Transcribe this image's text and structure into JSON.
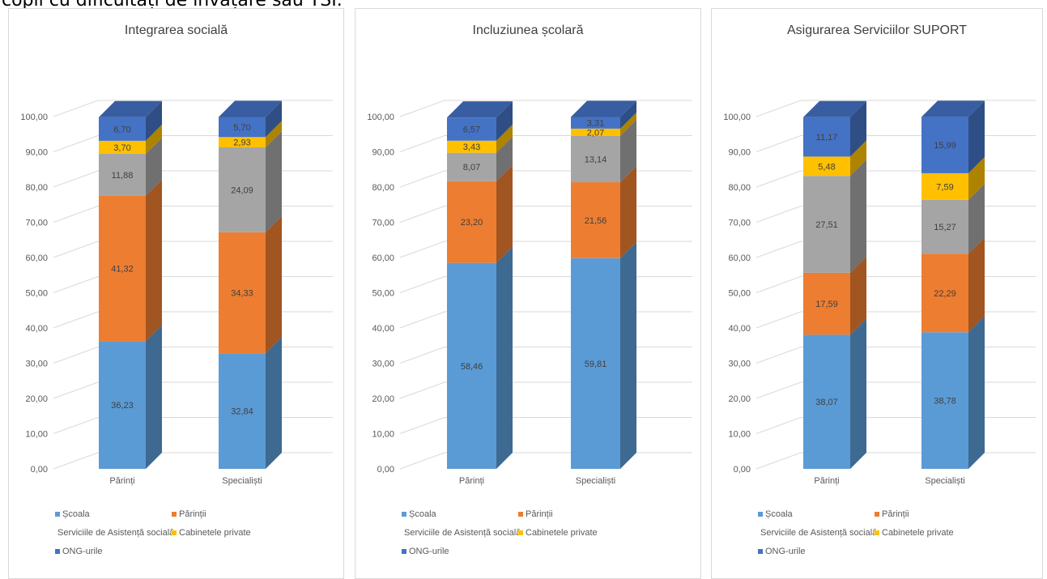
{
  "page": {
    "header_text": "copii cu dificultăți de învățare sau TSI."
  },
  "legend": {
    "items": [
      {
        "label": "Școala",
        "color": "#5b9bd5"
      },
      {
        "label": "Părinții",
        "color": "#ed7d31"
      },
      {
        "label": "Serviciile de Asistență socială",
        "color": "#a5a5a5"
      },
      {
        "label": "Cabinetele private",
        "color": "#ffc000"
      },
      {
        "label": "ONG-urile",
        "color": "#4472c4"
      }
    ]
  },
  "chart_data": [
    {
      "type": "bar",
      "stacked": true,
      "three_d": true,
      "title": "Integrarea socială",
      "categories": [
        "Părinți",
        "Specialiști"
      ],
      "y_ticks": [
        "0,00",
        "10,00",
        "20,00",
        "30,00",
        "40,00",
        "50,00",
        "60,00",
        "70,00",
        "80,00",
        "90,00",
        "100,00"
      ],
      "ylim": [
        0,
        100
      ],
      "grid": true,
      "legend_position": "bottom",
      "series": [
        {
          "name": "Școala",
          "values": [
            36.23,
            32.84
          ],
          "labels": [
            "36,23",
            "32,84"
          ]
        },
        {
          "name": "Părinții",
          "values": [
            41.32,
            34.33
          ],
          "labels": [
            "41,32",
            "34,33"
          ]
        },
        {
          "name": "Serviciile de Asistență socială",
          "values": [
            11.88,
            24.09
          ],
          "labels": [
            "11,88",
            "24,09"
          ]
        },
        {
          "name": "Cabinetele private",
          "values": [
            3.7,
            2.93
          ],
          "labels": [
            "3,70",
            "2,93"
          ]
        },
        {
          "name": "ONG-urile",
          "values": [
            6.7,
            5.7
          ],
          "labels": [
            "6,70",
            "5,70"
          ]
        }
      ]
    },
    {
      "type": "bar",
      "stacked": true,
      "three_d": true,
      "title": "Incluziunea școlară",
      "categories": [
        "Părinți",
        "Specialiști"
      ],
      "y_ticks": [
        "0,00",
        "10,00",
        "20,00",
        "30,00",
        "40,00",
        "50,00",
        "60,00",
        "70,00",
        "80,00",
        "90,00",
        "100,00"
      ],
      "ylim": [
        0,
        100
      ],
      "grid": true,
      "legend_position": "bottom",
      "series": [
        {
          "name": "Școala",
          "values": [
            58.46,
            59.81
          ],
          "labels": [
            "58,46",
            "59,81"
          ]
        },
        {
          "name": "Părinții",
          "values": [
            23.2,
            21.56
          ],
          "labels": [
            "23,20",
            "21,56"
          ]
        },
        {
          "name": "Serviciile de Asistență socială",
          "values": [
            8.07,
            13.14
          ],
          "labels": [
            "8,07",
            "13,14"
          ]
        },
        {
          "name": "Cabinetele private",
          "values": [
            3.43,
            2.07
          ],
          "labels": [
            "3,43",
            "2,07"
          ]
        },
        {
          "name": "ONG-urile",
          "values": [
            6.57,
            3.31
          ],
          "labels": [
            "6,57",
            "3,31"
          ]
        }
      ]
    },
    {
      "type": "bar",
      "stacked": true,
      "three_d": true,
      "title": "Asigurarea Serviciilor SUPORT",
      "categories": [
        "Părinți",
        "Specialiști"
      ],
      "y_ticks": [
        "0,00",
        "10,00",
        "20,00",
        "30,00",
        "40,00",
        "50,00",
        "60,00",
        "70,00",
        "80,00",
        "90,00",
        "100,00"
      ],
      "ylim": [
        0,
        100
      ],
      "grid": true,
      "legend_position": "bottom",
      "series": [
        {
          "name": "Școala",
          "values": [
            38.07,
            38.78
          ],
          "labels": [
            "38,07",
            "38,78"
          ]
        },
        {
          "name": "Părinții",
          "values": [
            17.59,
            22.29
          ],
          "labels": [
            "17,59",
            "22,29"
          ]
        },
        {
          "name": "Serviciile de Asistență socială",
          "values": [
            27.51,
            15.27
          ],
          "labels": [
            "27,51",
            "15,27"
          ]
        },
        {
          "name": "Cabinetele private",
          "values": [
            5.48,
            7.59
          ],
          "labels": [
            "5,48",
            "7,59"
          ]
        },
        {
          "name": "ONG-urile",
          "values": [
            11.17,
            15.99
          ],
          "labels": [
            "11,17",
            "15,99"
          ]
        }
      ]
    }
  ]
}
